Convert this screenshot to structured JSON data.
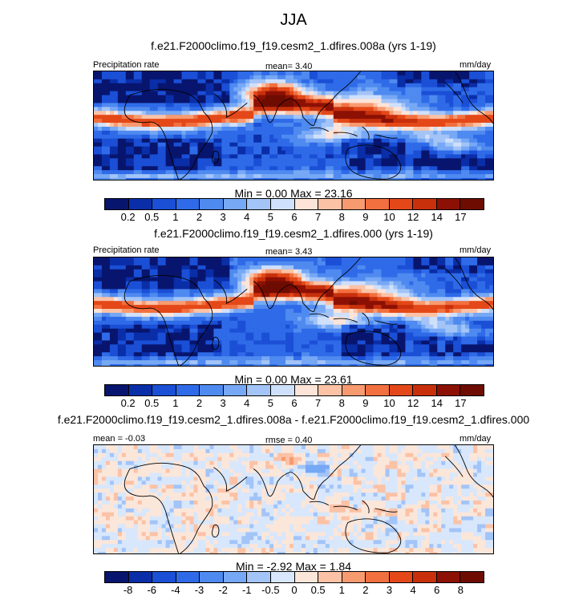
{
  "title": "JJA",
  "panels": [
    {
      "case_title": "f.e21.F2000climo.f19_f19.cesm2_1.dfires.008a (yrs 1-19)",
      "left_label": "Precipitation rate",
      "center_label": "mean=   3.40",
      "right_label": "mm/day",
      "stats": "Min =   0.00 Max =  23.16",
      "field": "precip"
    },
    {
      "case_title": "f.e21.F2000climo.f19_f19.cesm2_1.dfires.000 (yrs 1-19)",
      "left_label": "Precipitation rate",
      "center_label": "mean=   3.43",
      "right_label": "mm/day",
      "stats": "Min =   0.00 Max =  23.61",
      "field": "precip"
    },
    {
      "case_title": "f.e21.F2000climo.f19_f19.cesm2_1.dfires.008a - f.e21.F2000climo.f19_f19.cesm2_1.dfires.000",
      "left_label": "mean =  -0.03",
      "center_label": "rmse =  0.40",
      "right_label": "mm/day",
      "stats": "Min =  -2.92 Max =   1.84",
      "field": "diff"
    }
  ],
  "colorbars": {
    "precip": {
      "levels": [
        "0.2",
        "0.5",
        "1",
        "2",
        "3",
        "4",
        "5",
        "6",
        "7",
        "8",
        "9",
        "10",
        "12",
        "14",
        "17"
      ],
      "colors": [
        "#08156e",
        "#0a2ea8",
        "#1a4fd6",
        "#2f6be8",
        "#4f8af0",
        "#76a8f5",
        "#a3c4f7",
        "#cfe0fb",
        "#fde4d8",
        "#fbc2a6",
        "#f89a70",
        "#f2703f",
        "#e44818",
        "#c8300c",
        "#8c1004",
        "#6e0c02"
      ]
    },
    "diff": {
      "levels": [
        "-8",
        "-6",
        "-4",
        "-3",
        "-2",
        "-1",
        "-0.5",
        "0",
        "0.5",
        "1",
        "2",
        "3",
        "4",
        "6",
        "8"
      ],
      "colors": [
        "#08156e",
        "#0a2ea8",
        "#1a4fd6",
        "#2f6be8",
        "#4f8af0",
        "#76a8f5",
        "#a3c4f7",
        "#d8e7fb",
        "#fbe6da",
        "#fbc2a6",
        "#f89a70",
        "#f2703f",
        "#e44818",
        "#c8300c",
        "#8c1004",
        "#6e0c02"
      ]
    }
  },
  "chart_data": [
    {
      "type": "heatmap",
      "title": "f.e21.F2000climo.f19_f19.cesm2_1.dfires.008a (yrs 1-19)",
      "variable": "Precipitation rate",
      "units": "mm/day",
      "mean": 3.4,
      "min": 0.0,
      "max": 23.16,
      "contour_levels": [
        0.2,
        0.5,
        1,
        2,
        3,
        4,
        5,
        6,
        7,
        8,
        9,
        10,
        12,
        14,
        17
      ]
    },
    {
      "type": "heatmap",
      "title": "f.e21.F2000climo.f19_f19.cesm2_1.dfires.000 (yrs 1-19)",
      "variable": "Precipitation rate",
      "units": "mm/day",
      "mean": 3.43,
      "min": 0.0,
      "max": 23.61,
      "contour_levels": [
        0.2,
        0.5,
        1,
        2,
        3,
        4,
        5,
        6,
        7,
        8,
        9,
        10,
        12,
        14,
        17
      ]
    },
    {
      "type": "heatmap",
      "title": "f.e21.F2000climo.f19_f19.cesm2_1.dfires.008a - f.e21.F2000climo.f19_f19.cesm2_1.dfires.000",
      "units": "mm/day",
      "mean": -0.03,
      "rmse": 0.4,
      "min": -2.92,
      "max": 1.84,
      "contour_levels": [
        -8,
        -6,
        -4,
        -3,
        -2,
        -1,
        -0.5,
        0,
        0.5,
        1,
        2,
        3,
        4,
        6,
        8
      ]
    }
  ]
}
